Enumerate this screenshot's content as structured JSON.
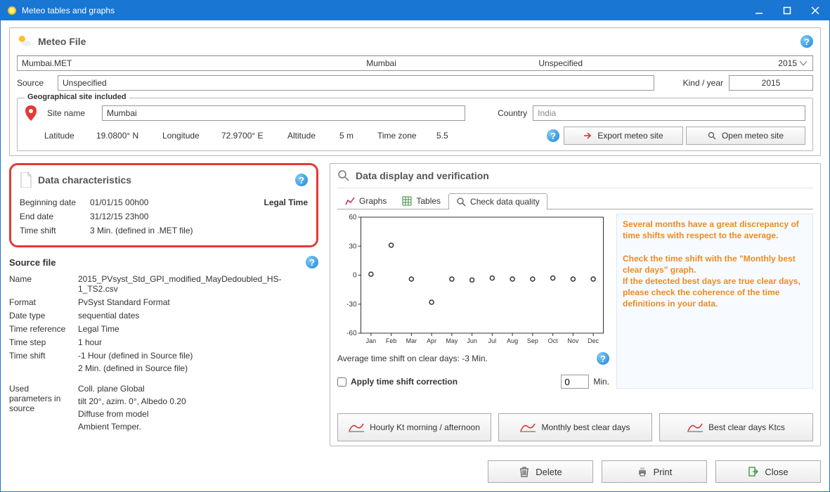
{
  "window": {
    "title": "Meteo tables and graphs"
  },
  "meteo_file": {
    "header": "Meteo File",
    "filename": "Mumbai.MET",
    "city": "Mumbai",
    "spec": "Unspecified",
    "year": "2015",
    "source_label": "Source",
    "source_value": "Unspecified",
    "kind_year_label": "Kind / year",
    "kind_year_value": "2015"
  },
  "geo": {
    "legend": "Geographical site included",
    "site_name_label": "Site name",
    "site_name": "Mumbai",
    "country_label": "Country",
    "country": "India",
    "latitude_label": "Latitude",
    "latitude": "19.0800° N",
    "longitude_label": "Longitude",
    "longitude": "72.9700° E",
    "altitude_label": "Altitude",
    "altitude": "5 m",
    "timezone_label": "Time zone",
    "timezone": "5.5",
    "export_btn": "Export meteo site",
    "open_btn": "Open meteo site"
  },
  "data_char": {
    "header": "Data characteristics",
    "beg_label": "Beginning date",
    "beg_value": "01/01/15 00h00",
    "legal_time": "Legal Time",
    "end_label": "End date",
    "end_value": "31/12/15 23h00",
    "shift_label": "Time shift",
    "shift_value": "3 Min. (defined in .MET file)"
  },
  "source_file": {
    "header": "Source file",
    "name_label": "Name",
    "name_value": "2015_PVsyst_Std_GPI_modified_MayDedoubled_HS-1_TS2.csv",
    "format_label": "Format",
    "format_value": "PvSyst Standard Format",
    "date_type_label": "Date type",
    "date_type_value": "sequential dates",
    "time_ref_label": "Time reference",
    "time_ref_value": "Legal Time",
    "time_step_label": "Time step",
    "time_step_value": "1 hour",
    "time_shift_label": "Time shift",
    "time_shift_value1": "-1 Hour (defined in Source file)",
    "time_shift_value2": "2 Min. (defined in Source file)",
    "used_label": "Used parameters in source",
    "used1": "Coll. plane Global",
    "used2": "tilt 20°, azim. 0°, Albedo 0.20",
    "used3": "Diffuse from model",
    "used4": "Ambient Temper."
  },
  "display": {
    "header": "Data display and verification",
    "tab_graphs": "Graphs",
    "tab_tables": "Tables",
    "tab_quality": "Check data quality"
  },
  "chart": {
    "y_ticks": [
      -60,
      -30,
      0,
      30,
      60
    ],
    "x_labels": [
      "Jan",
      "Feb",
      "Mar",
      "Apr",
      "May",
      "Jun",
      "Jul",
      "Aug",
      "Sep",
      "Oct",
      "Nov",
      "Dec"
    ],
    "points": [
      1,
      31,
      -4,
      -28,
      -4,
      -5,
      -3,
      -4,
      -4,
      -3,
      -4,
      -4
    ],
    "axis_color": "#333",
    "point_color": "#333",
    "bg_color": "#ffffff",
    "avg_text": "Average time shift on clear days: -3 Min.",
    "warn1": "Several months have a great discrepancy of time shifts with respect to the average.",
    "warn2": "Check the time shift with the \"Monthly best clear days\" graph.",
    "warn3": "If the detected best days are true clear days, please check the coherence of the time definitions in your data.",
    "apply_label": "Apply time shift correction",
    "min_value": "0",
    "min_label": "Min."
  },
  "big_buttons": {
    "kt": "Hourly Kt morning / afternoon",
    "monthly": "Monthly best clear days",
    "ktcs": "Best clear days Ktcs"
  },
  "footer": {
    "delete": "Delete",
    "print": "Print",
    "close": "Close"
  }
}
